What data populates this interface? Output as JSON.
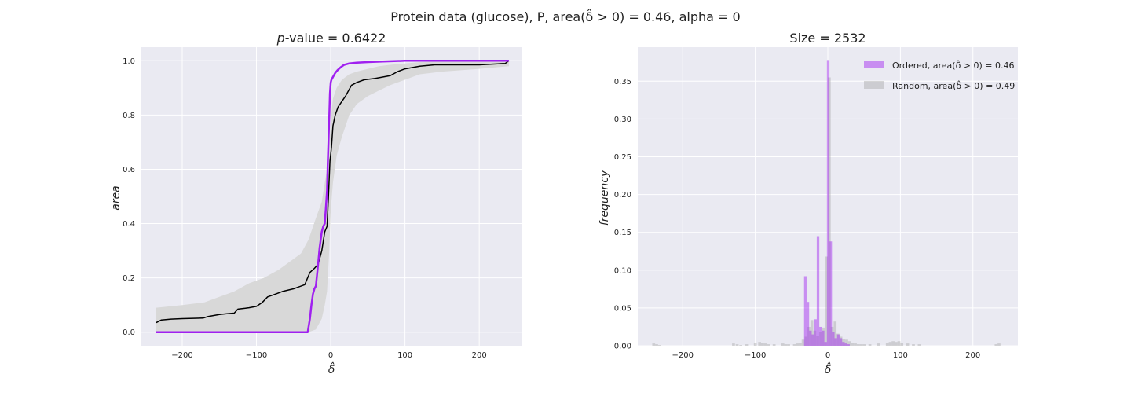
{
  "figure": {
    "suptitle": "Protein data (glucose), P, area(δ̂ > 0) = 0.46, alpha = 0"
  },
  "chart_data": [
    {
      "type": "line",
      "title": "p-value = 0.6422",
      "xlabel": "δ̂",
      "ylabel": "area",
      "xlim": [
        -255,
        258
      ],
      "ylim": [
        -0.05,
        1.05
      ],
      "xticks": [
        -200,
        -100,
        0,
        100,
        200
      ],
      "yticks": [
        0.0,
        0.2,
        0.4,
        0.6,
        0.8,
        1.0
      ],
      "xtick_labels": [
        "−200",
        "−100",
        "0",
        "100",
        "200"
      ],
      "ytick_labels": [
        "0.0",
        "0.2",
        "0.4",
        "0.6",
        "0.8",
        "1.0"
      ],
      "grid": true,
      "background": "#EAEAF2",
      "series": [
        {
          "role": "ordered",
          "color": "#A020F0",
          "x": [
            -235,
            -31,
            -28,
            -26,
            -24,
            -22,
            -20,
            -17,
            -15,
            -12,
            -10,
            -8,
            -5,
            -4,
            -3,
            -2,
            -1,
            0,
            1,
            3,
            6,
            9,
            13,
            18,
            25,
            35,
            50,
            70,
            100,
            240
          ],
          "y": [
            0.0,
            0.0,
            0.05,
            0.1,
            0.14,
            0.16,
            0.17,
            0.25,
            0.31,
            0.37,
            0.39,
            0.4,
            0.52,
            0.62,
            0.7,
            0.79,
            0.88,
            0.92,
            0.93,
            0.94,
            0.955,
            0.965,
            0.975,
            0.985,
            0.99,
            0.993,
            0.995,
            0.997,
            1.0,
            1.0
          ]
        },
        {
          "role": "random-mean",
          "color": "#000000",
          "x": [
            -235,
            -228,
            -215,
            -200,
            -185,
            -172,
            -165,
            -150,
            -140,
            -130,
            -125,
            -115,
            -110,
            -100,
            -92,
            -85,
            -75,
            -65,
            -50,
            -35,
            -28,
            -22,
            -17,
            -12,
            -8,
            -5,
            -3,
            -1,
            1,
            3,
            6,
            10,
            20,
            28,
            35,
            45,
            60,
            70,
            80,
            90,
            100,
            120,
            140,
            200,
            235,
            240
          ],
          "y": [
            0.035,
            0.045,
            0.048,
            0.05,
            0.051,
            0.052,
            0.058,
            0.065,
            0.068,
            0.07,
            0.085,
            0.088,
            0.09,
            0.095,
            0.11,
            0.13,
            0.14,
            0.15,
            0.16,
            0.175,
            0.22,
            0.235,
            0.25,
            0.3,
            0.37,
            0.39,
            0.5,
            0.63,
            0.68,
            0.76,
            0.8,
            0.83,
            0.87,
            0.91,
            0.92,
            0.93,
            0.935,
            0.94,
            0.945,
            0.96,
            0.97,
            0.98,
            0.985,
            0.985,
            0.99,
            1.0
          ]
        },
        {
          "role": "random-band",
          "color": "#D8D8D8",
          "x": [
            -235,
            -200,
            -170,
            -150,
            -130,
            -110,
            -90,
            -70,
            -50,
            -40,
            -30,
            -20,
            -12,
            -8,
            -5,
            -2,
            0,
            3,
            8,
            15,
            25,
            35,
            50,
            65,
            80,
            100,
            120,
            150,
            200,
            240
          ],
          "upper": [
            0.09,
            0.1,
            0.11,
            0.13,
            0.15,
            0.18,
            0.2,
            0.23,
            0.27,
            0.29,
            0.34,
            0.42,
            0.48,
            0.55,
            0.6,
            0.68,
            0.78,
            0.86,
            0.9,
            0.93,
            0.95,
            0.96,
            0.97,
            0.98,
            0.985,
            0.99,
            0.995,
            0.998,
            1.0,
            1.0
          ],
          "lower": [
            0.0,
            0.0,
            0.0,
            0.0,
            0.0,
            0.0,
            0.0,
            0.0,
            0.0,
            0.0,
            0.0,
            0.01,
            0.05,
            0.1,
            0.15,
            0.3,
            0.45,
            0.55,
            0.65,
            0.72,
            0.8,
            0.84,
            0.87,
            0.89,
            0.91,
            0.93,
            0.95,
            0.96,
            0.97,
            0.98
          ]
        }
      ]
    },
    {
      "type": "histogram",
      "title": "Size = 2532",
      "xlabel": "δ̂",
      "ylabel": "frequency",
      "xlim": [
        -262,
        262
      ],
      "ylim": [
        0,
        0.395
      ],
      "xticks": [
        -200,
        -100,
        0,
        100,
        200
      ],
      "yticks": [
        0.0,
        0.05,
        0.1,
        0.15,
        0.2,
        0.25,
        0.3,
        0.35
      ],
      "xtick_labels": [
        "−200",
        "−100",
        "0",
        "100",
        "200"
      ],
      "ytick_labels": [
        "0.00",
        "0.05",
        "0.10",
        "0.15",
        "0.20",
        "0.25",
        "0.30",
        "0.35"
      ],
      "grid": true,
      "background": "#EAEAF2",
      "legend_position": "top-right",
      "legend": [
        "Ordered, area(δ̂ > 0) = 0.46",
        "Random, area(δ̂ > 0) = 0.49"
      ],
      "series": [
        {
          "role": "ordered",
          "color": "#A020F0",
          "alpha": 0.45,
          "bin_width": 3.5,
          "centers": [
            -31,
            -27.5,
            -24,
            -20.5,
            -17,
            -13.5,
            -10,
            -6.5,
            -3,
            0.5,
            4,
            7.5,
            11,
            14.5,
            18,
            21.5,
            25,
            28.5
          ],
          "values": [
            0.092,
            0.058,
            0.02,
            0.015,
            0.035,
            0.145,
            0.025,
            0.02,
            0.005,
            0.378,
            0.138,
            0.018,
            0.01,
            0.015,
            0.01,
            0.005,
            0.003,
            0.002
          ]
        },
        {
          "role": "random",
          "color": "#A8A8A8",
          "alpha": 0.45,
          "bin_width": 4.0,
          "centers": [
            -240,
            -236,
            -232,
            -130,
            -125,
            -120,
            -112,
            -100,
            -94,
            -90,
            -86,
            -82,
            -74,
            -62,
            -58,
            -54,
            -46,
            -42,
            -38,
            -34,
            -30,
            -26,
            -22,
            -18,
            -14,
            -10,
            -6,
            -2,
            2,
            6,
            10,
            14,
            18,
            22,
            26,
            30,
            34,
            38,
            42,
            46,
            50,
            58,
            70,
            82,
            86,
            90,
            94,
            98,
            102,
            110,
            118,
            126,
            232,
            236
          ],
          "values": [
            0.003,
            0.002,
            0.001,
            0.003,
            0.002,
            0.001,
            0.002,
            0.004,
            0.005,
            0.004,
            0.003,
            0.002,
            0.002,
            0.003,
            0.002,
            0.002,
            0.002,
            0.003,
            0.004,
            0.008,
            0.012,
            0.025,
            0.034,
            0.02,
            0.013,
            0.018,
            0.024,
            0.118,
            0.355,
            0.025,
            0.032,
            0.016,
            0.012,
            0.009,
            0.008,
            0.006,
            0.004,
            0.003,
            0.002,
            0.002,
            0.002,
            0.002,
            0.003,
            0.004,
            0.005,
            0.006,
            0.005,
            0.006,
            0.004,
            0.003,
            0.002,
            0.002,
            0.002,
            0.003
          ]
        }
      ]
    }
  ]
}
